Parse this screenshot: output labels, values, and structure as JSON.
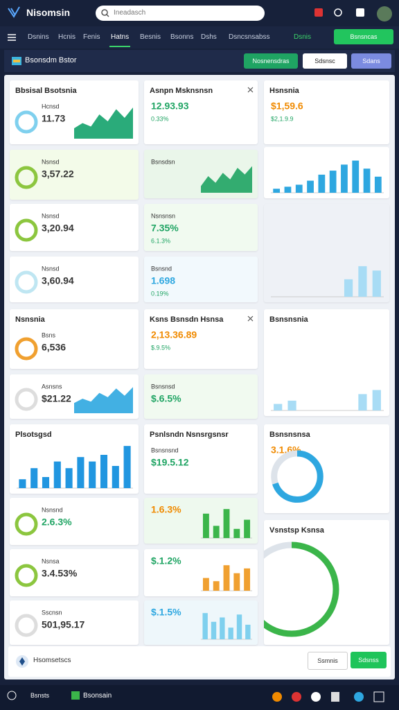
{
  "header": {
    "app_name": "Nisomsin",
    "search_placeholder": "Ineadasch"
  },
  "nav": {
    "tabs": [
      "Dsnins",
      "Hcnis",
      "Fenis",
      "Hatns",
      "Besnis",
      "Bsonns",
      "Dshs",
      "Dsncsnsabss"
    ],
    "active": 3,
    "status": "Dsnis",
    "button": "Bsnsncas"
  },
  "toolbar": {
    "title": "Bsonsdm Bstor",
    "buttons": [
      "Nosnensdras",
      "Sdsnsc",
      "Sdans"
    ]
  },
  "cards": [
    {
      "title": "Bbsisal Bsotsnia",
      "label": "Hcnsd",
      "value": "11.73",
      "ring": "#7fd0ee",
      "chart": {
        "type": "spark",
        "color": "#13a26b",
        "ylim": [
          0,
          100
        ],
        "values": [
          30,
          45,
          35,
          70,
          50,
          85,
          60,
          90
        ]
      }
    },
    {
      "label": "Nsnsd",
      "value": "3,57.22",
      "ring": "#8cc63f"
    },
    {
      "label": "Nsnsd",
      "value": "3,20.94",
      "ring": "#8cc63f"
    },
    {
      "label": "Nsnsd",
      "value": "3,60.94",
      "ring": "#bfe6f2"
    },
    {
      "title": "Nsnsnia",
      "label": "Bsns",
      "value": "6,536",
      "ring": "#f0a030"
    },
    {
      "label": "Asnsns",
      "value": "$21.22",
      "ring": "#dddddd",
      "chart": {
        "type": "spark",
        "color": "#2ea7e0",
        "ylim": [
          0,
          100
        ],
        "values": [
          35,
          50,
          40,
          70,
          55,
          85,
          60,
          90
        ]
      }
    },
    {
      "title": "Plsotsgsd",
      "chart": {
        "type": "bars",
        "color": "#2196e0",
        "ylim": [
          0,
          100
        ],
        "values": [
          20,
          45,
          25,
          60,
          45,
          70,
          60,
          75,
          50,
          95
        ]
      }
    },
    {
      "label": "Nsnsnd",
      "value": "2.6.3%",
      "value_color": "#1fa463",
      "ring": "#8cc63f"
    },
    {
      "label": "Nsnsa",
      "value": "3.4.53%",
      "ring": "#8cc63f"
    },
    {
      "label": "Sscnsn",
      "value": "501,95.17",
      "ring": "#dddddd"
    },
    {
      "title": "Asnpn Msknsnsn",
      "value": "12.93.93",
      "value_color": "#1fa463",
      "delta": "0.33%"
    },
    {
      "label": "Bsnsdsn",
      "chart": {
        "type": "spark",
        "color": "#1fa463",
        "ylim": [
          0,
          100
        ],
        "values": [
          20,
          50,
          30,
          60,
          40,
          75,
          55,
          80
        ]
      }
    },
    {
      "label": "Nsnsnsn",
      "value": "7.35%",
      "value_color": "#1fa463",
      "delta": "6.1.3%"
    },
    {
      "label": "Bsnsnd",
      "value": "1.698",
      "value_color": "#2ea7e0",
      "delta": "0.19%"
    },
    {
      "title": "Ksns Bsnsdn Hsnsa",
      "value": "2,13.36.89",
      "value_color": "#f08a00",
      "delta": "$.9.5%"
    },
    {
      "label": "Bsnsnsd",
      "value": "$.6.5%",
      "value_color": "#1fa463"
    },
    {
      "title": "Psnlsndn Nsnsrgsnsr",
      "value": "$19.5.12",
      "value_color": "#1fa463",
      "label": "Bsnsnsnd"
    },
    {
      "value": "1.6.3%",
      "value_color": "#f08a00",
      "chart": {
        "type": "bars",
        "color": "#3bb54a",
        "ylim": [
          0,
          100
        ],
        "values": [
          80,
          40,
          95,
          30,
          60
        ]
      }
    },
    {
      "value": "$.1.2%",
      "value_color": "#1fa463",
      "chart": {
        "type": "bars",
        "color": "#f0a030",
        "ylim": [
          0,
          100
        ],
        "values": [
          40,
          30,
          80,
          55,
          70
        ]
      }
    },
    {
      "value": "$.1.5%",
      "value_color": "#2ea7e0",
      "chart": {
        "type": "bars",
        "color": "#7fd0ee",
        "ylim": [
          0,
          100
        ],
        "values": [
          90,
          60,
          75,
          40,
          85,
          50
        ]
      }
    },
    {
      "title": "Hsnsnia",
      "value": "$1,59.6",
      "value_color": "#f08a00",
      "delta": "$2,1.9.9"
    },
    {
      "chart": {
        "type": "bars",
        "color": "#2ea7e0",
        "ylim": [
          0,
          100
        ],
        "values": [
          10,
          15,
          20,
          30,
          45,
          55,
          70,
          80,
          60,
          40
        ]
      }
    },
    {
      "chart": {
        "type": "bars",
        "color": "#a8dcf5",
        "ylim": [
          0,
          100
        ],
        "values": [
          0,
          0,
          0,
          0,
          0,
          20,
          35,
          30
        ]
      }
    },
    {
      "title": "Bsnsnsnia",
      "chart": {
        "type": "bars",
        "color": "#a8dcf5",
        "ylim": [
          0,
          100
        ],
        "values": [
          8,
          12,
          0,
          0,
          0,
          0,
          20,
          25
        ]
      }
    },
    {
      "title": "Bsnsnsnsa",
      "value": "3.1.6%",
      "value_color": "#f08a00",
      "chart": {
        "type": "donut",
        "color": "#2ea7e0",
        "values": [
          70,
          30
        ]
      }
    },
    {
      "title": "Vsnstsp Ksnsa",
      "chart": {
        "type": "donut",
        "color": "#3bb54a",
        "values": [
          85,
          15
        ]
      }
    }
  ],
  "footer_bar": {
    "label": "Hsomsetscs",
    "buttons": [
      "Ssmnis",
      "Sdsnss"
    ]
  },
  "bottom_bar": {
    "left": "Bsnsts",
    "app": "Bsonsain"
  }
}
